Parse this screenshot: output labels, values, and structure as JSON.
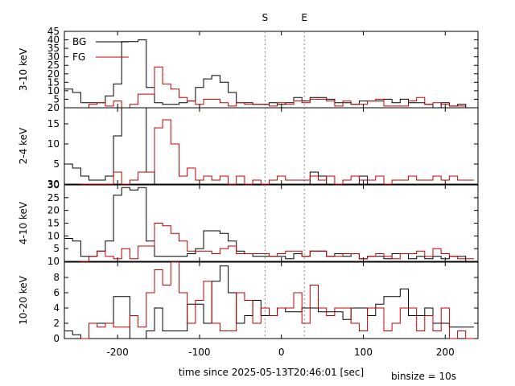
{
  "chart_data": {
    "type": "line",
    "xlabel": "time since 2025-05-13T20:46:01 [sec]",
    "binsize_label": "binsize = 10s",
    "xlim": [
      -265,
      240
    ],
    "xticks": [
      -200,
      -100,
      0,
      100,
      200
    ],
    "xtick_labels": [
      "-200",
      "-100",
      "0",
      "100",
      "200"
    ],
    "markers": [
      {
        "label": "S",
        "x": -20
      },
      {
        "label": "E",
        "x": 28
      }
    ],
    "legend": {
      "placement": "top-left",
      "entries": [
        {
          "name": "BG",
          "color": "#000000"
        },
        {
          "name": "FG",
          "color": "#c00000"
        }
      ]
    },
    "panels": [
      {
        "ylabel": "3-10 keV",
        "ylim": [
          0,
          45
        ],
        "yticks": [
          5,
          10,
          15,
          20,
          25,
          30,
          35,
          40,
          45
        ],
        "ytick_labels": [
          "5",
          "10",
          "15",
          "20",
          "25",
          "30",
          "35",
          "40",
          "45"
        ],
        "bottom_label": "20",
        "series": [
          {
            "name": "BG",
            "color": "#000000",
            "bin_starts": [
              -265,
              -255,
              -245,
              -235,
              -225,
              -215,
              -205,
              -195,
              -185,
              -175,
              -165,
              -155,
              -145,
              -135,
              -125,
              -115,
              -105,
              -95,
              -85,
              -75,
              -65,
              -55,
              -45,
              -35,
              -25,
              -15,
              -5,
              5,
              15,
              25,
              35,
              45,
              55,
              65,
              75,
              85,
              95,
              105,
              115,
              125,
              135,
              145,
              155,
              165,
              175,
              185,
              195,
              205,
              215,
              225
            ],
            "values": [
              11,
              9,
              3,
              3,
              3,
              7,
              14,
              39,
              39,
              40,
              12,
              3,
              2,
              2,
              3,
              4,
              12,
              17,
              19,
              15,
              9,
              3,
              3,
              2,
              2,
              3,
              2,
              3,
              6,
              4,
              6,
              6,
              5,
              3,
              3,
              2,
              4,
              4,
              4,
              5,
              3,
              5,
              3,
              3,
              2,
              0,
              3,
              1,
              2,
              0
            ]
          },
          {
            "name": "FG",
            "color": "#c00000",
            "bin_starts": [
              -245,
              -235,
              -225,
              -215,
              -205,
              -195,
              -185,
              -175,
              -165,
              -155,
              -145,
              -135,
              -125,
              -115,
              -105,
              -95,
              -85,
              -75,
              -65,
              -55,
              -45,
              -35,
              -25,
              -15,
              -5,
              5,
              15,
              25,
              35,
              45,
              55,
              65,
              75,
              85,
              95,
              105,
              115,
              125,
              135,
              145,
              155,
              165,
              175,
              185,
              195,
              205,
              215,
              225
            ],
            "values": [
              0,
              2,
              3,
              1,
              4,
              0,
              2,
              8,
              8,
              24,
              14,
              11,
              6,
              4,
              2,
              5,
              5,
              3,
              1,
              3,
              2,
              2,
              2,
              1,
              3,
              2,
              4,
              3,
              5,
              5,
              4,
              1,
              4,
              2,
              2,
              4,
              5,
              1,
              1,
              1,
              4,
              6,
              2,
              3,
              2,
              1,
              1,
              0
            ]
          }
        ]
      },
      {
        "ylabel": "2-4 keV",
        "ylim": [
          0,
          19
        ],
        "yticks": [
          5,
          10,
          15
        ],
        "ytick_labels": [
          "5",
          "10",
          "15"
        ],
        "bottom_label": "30",
        "series": [
          {
            "name": "BG",
            "color": "#000000",
            "bin_starts": [
              -265,
              -255,
              -245,
              -235,
              -225,
              -215,
              -205,
              -195,
              -185,
              -175,
              -165,
              -155,
              -145,
              -135,
              -125,
              -115,
              -105,
              -95,
              -85,
              -75,
              -65,
              -55,
              -45,
              -35,
              -25,
              -15,
              -5,
              5,
              15,
              25,
              35,
              45,
              55,
              65,
              75,
              85,
              95,
              105,
              115,
              125,
              135,
              145,
              155,
              165,
              175,
              185,
              195,
              205,
              215,
              225
            ],
            "values": [
              5,
              4,
              2,
              1,
              1,
              2,
              12,
              19,
              19,
              19,
              3,
              0,
              0,
              0,
              0,
              0,
              0,
              0,
              0,
              0,
              0,
              0,
              0,
              0,
              0,
              0,
              0,
              0,
              0,
              0,
              3,
              2,
              0,
              0,
              0,
              0,
              2,
              0,
              0,
              0,
              0,
              0,
              0,
              0,
              0,
              0,
              0,
              0,
              0,
              0
            ]
          },
          {
            "name": "FG",
            "color": "#c00000",
            "bin_starts": [
              -245,
              -235,
              -225,
              -215,
              -205,
              -195,
              -185,
              -175,
              -165,
              -155,
              -145,
              -135,
              -125,
              -115,
              -105,
              -95,
              -85,
              -75,
              -65,
              -55,
              -45,
              -35,
              -25,
              -15,
              -5,
              5,
              15,
              25,
              35,
              45,
              55,
              65,
              75,
              85,
              95,
              105,
              115,
              125,
              135,
              145,
              155,
              165,
              175,
              185,
              195,
              205,
              215,
              225
            ],
            "values": [
              0,
              0,
              0,
              0,
              3,
              0,
              1,
              3,
              3,
              14,
              16,
              10,
              2,
              4,
              1,
              2,
              1,
              2,
              0,
              2,
              0,
              1,
              0,
              1,
              2,
              1,
              1,
              1,
              2,
              1,
              2,
              0,
              1,
              2,
              1,
              1,
              2,
              0,
              1,
              1,
              2,
              1,
              1,
              2,
              1,
              2,
              1,
              1
            ]
          }
        ]
      },
      {
        "ylabel": "4-10 keV",
        "ylim": [
          0,
          30
        ],
        "yticks": [
          5,
          10,
          15,
          20,
          25,
          30
        ],
        "ytick_labels": [
          "5",
          "10",
          "15",
          "20",
          "25",
          "30"
        ],
        "bottom_label": "10",
        "series": [
          {
            "name": "BG",
            "color": "#000000",
            "bin_starts": [
              -265,
              -255,
              -245,
              -235,
              -225,
              -215,
              -205,
              -195,
              -185,
              -175,
              -165,
              -155,
              -145,
              -135,
              -125,
              -115,
              -105,
              -95,
              -85,
              -75,
              -65,
              -55,
              -45,
              -35,
              -25,
              -15,
              -5,
              5,
              15,
              25,
              35,
              45,
              55,
              65,
              75,
              85,
              95,
              105,
              115,
              125,
              135,
              145,
              155,
              165,
              175,
              185,
              195,
              205,
              215,
              225
            ],
            "values": [
              9,
              8,
              2,
              2,
              4,
              8,
              26,
              29,
              28,
              29,
              8,
              2,
              2,
              2,
              2,
              3,
              5,
              12,
              12,
              11,
              8,
              4,
              3,
              2,
              2,
              2,
              2,
              1,
              3,
              2,
              4,
              4,
              2,
              3,
              2,
              3,
              1,
              2,
              2,
              1,
              3,
              3,
              1,
              2,
              1,
              2,
              1,
              2,
              2,
              0
            ]
          },
          {
            "name": "FG",
            "color": "#c00000",
            "bin_starts": [
              -245,
              -235,
              -225,
              -215,
              -205,
              -195,
              -185,
              -175,
              -165,
              -155,
              -145,
              -135,
              -125,
              -115,
              -105,
              -95,
              -85,
              -75,
              -65,
              -55,
              -45,
              -35,
              -25,
              -15,
              -5,
              5,
              15,
              25,
              35,
              45,
              55,
              65,
              75,
              85,
              95,
              105,
              115,
              125,
              135,
              145,
              155,
              165,
              175,
              185,
              195,
              205,
              215,
              225
            ],
            "values": [
              0,
              2,
              4,
              2,
              1,
              5,
              1,
              6,
              6,
              15,
              14,
              11,
              8,
              4,
              4,
              4,
              3,
              5,
              6,
              3,
              3,
              3,
              3,
              2,
              3,
              4,
              4,
              2,
              4,
              4,
              2,
              2,
              3,
              3,
              1,
              2,
              3,
              2,
              1,
              3,
              3,
              4,
              2,
              5,
              3,
              2,
              1,
              1
            ]
          }
        ]
      },
      {
        "ylabel": "10-20 keV",
        "ylim": [
          0,
          10
        ],
        "yticks": [
          0,
          2,
          4,
          6,
          8
        ],
        "ytick_labels": [
          "0",
          "2",
          "4",
          "6",
          "8"
        ],
        "bottom_label": "",
        "series": [
          {
            "name": "BG",
            "color": "#000000",
            "bin_starts": [
              -265,
              -255,
              -245,
              -235,
              -225,
              -215,
              -205,
              -195,
              -185,
              -175,
              -165,
              -155,
              -145,
              -135,
              -125,
              -115,
              -105,
              -95,
              -85,
              -75,
              -65,
              -55,
              -45,
              -35,
              -25,
              -15,
              -5,
              5,
              15,
              25,
              35,
              45,
              55,
              65,
              75,
              85,
              95,
              105,
              115,
              125,
              135,
              145,
              155,
              165,
              175,
              185,
              195,
              205,
              215,
              225
            ],
            "values": [
              1,
              0.5,
              0,
              2,
              2,
              2,
              5.5,
              5.5,
              0,
              0,
              1,
              4,
              1,
              1,
              1,
              4.5,
              4.5,
              2,
              7.5,
              9.5,
              6,
              2,
              3,
              5,
              3,
              3,
              4,
              3.5,
              3.5,
              4,
              4,
              3.5,
              3.5,
              3.5,
              2.5,
              4,
              4,
              3,
              4.5,
              5.5,
              5.5,
              6.5,
              3,
              3,
              4,
              2,
              2,
              1.5,
              1.5,
              1.5
            ]
          },
          {
            "name": "FG",
            "color": "#c00000",
            "bin_starts": [
              -245,
              -235,
              -225,
              -215,
              -205,
              -195,
              -185,
              -175,
              -165,
              -155,
              -145,
              -135,
              -125,
              -115,
              -105,
              -95,
              -85,
              -75,
              -65,
              -55,
              -45,
              -35,
              -25,
              -15,
              -5,
              5,
              15,
              25,
              35,
              45,
              55,
              65,
              75,
              85,
              95,
              105,
              115,
              125,
              135,
              145,
              155,
              165,
              175,
              185,
              195,
              205,
              215,
              225
            ],
            "values": [
              0,
              2,
              1.5,
              2,
              1.5,
              1.5,
              3,
              1.5,
              6,
              9,
              7,
              10,
              6,
              2,
              5,
              7.5,
              2,
              1,
              1,
              6,
              5,
              2,
              4,
              3,
              4,
              4,
              6,
              2,
              7,
              4,
              3,
              4,
              4,
              2,
              1,
              4,
              4,
              1,
              2,
              4,
              4,
              1,
              3,
              1,
              4,
              0,
              1,
              0
            ]
          }
        ]
      }
    ]
  }
}
